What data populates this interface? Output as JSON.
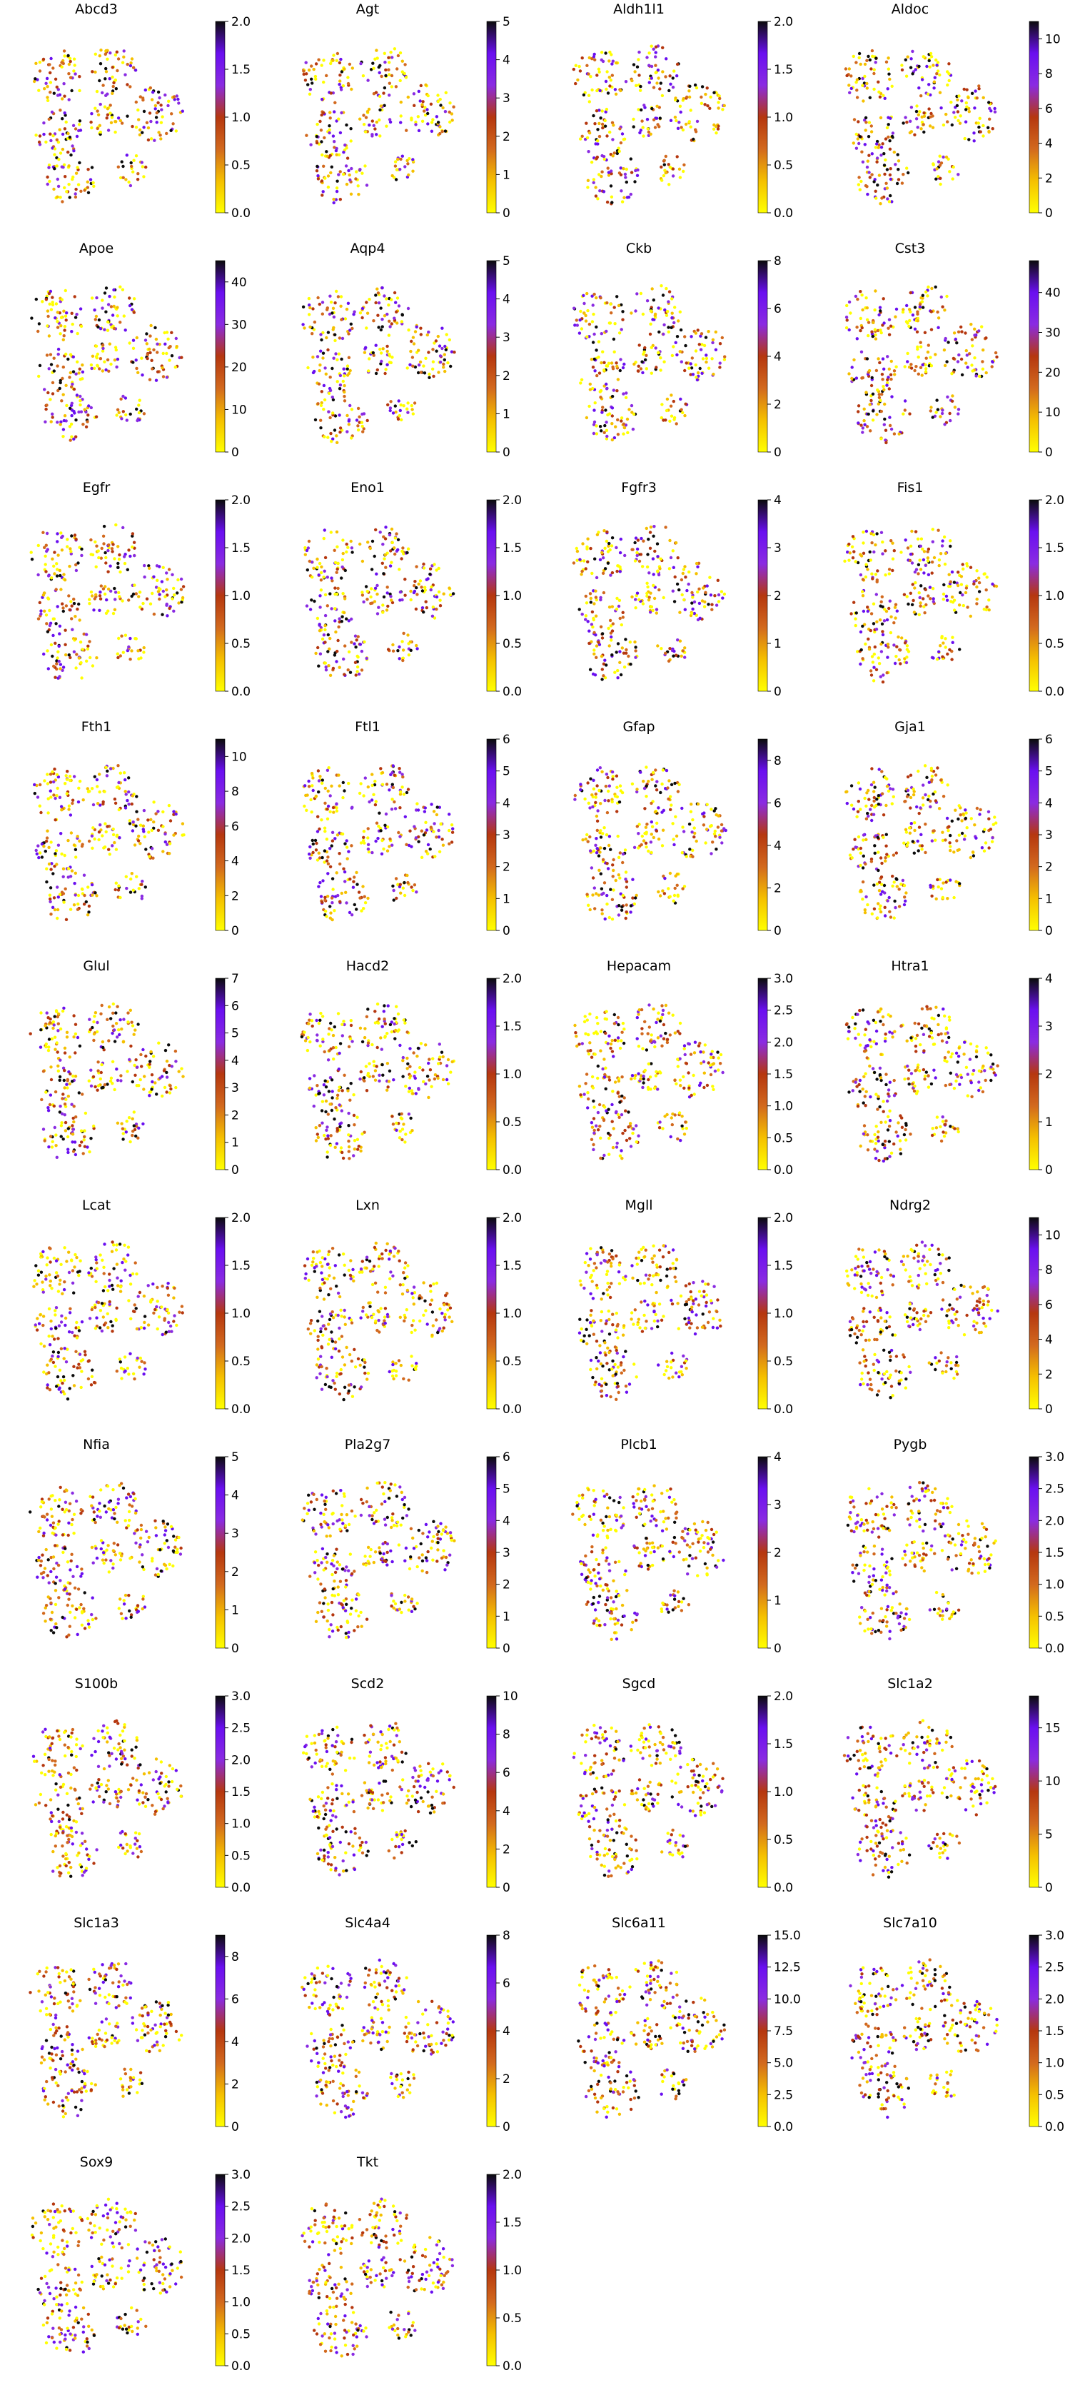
{
  "chart_data": {
    "type": "scatter",
    "description": "UMAP-style embedding coloured by gene expression",
    "colormap": [
      "#ffff00",
      "#f5c000",
      "#d2691e",
      "#b5370f",
      "#8a2be2",
      "#6a0ff0",
      "#0b0b0b"
    ],
    "background_color": "#ffffff",
    "grid": false,
    "panels": [
      {
        "gene": "Abcd3",
        "vmin": 0,
        "vmax": 2.0,
        "ticks": [
          "0.0",
          "0.5",
          "1.0",
          "1.5",
          "2.0"
        ]
      },
      {
        "gene": "Agt",
        "vmin": 0,
        "vmax": 5,
        "ticks": [
          "0",
          "1",
          "2",
          "3",
          "4",
          "5"
        ]
      },
      {
        "gene": "Aldh1l1",
        "vmin": 0,
        "vmax": 2.0,
        "ticks": [
          "0.0",
          "0.5",
          "1.0",
          "1.5",
          "2.0"
        ]
      },
      {
        "gene": "Aldoc",
        "vmin": 0,
        "vmax": 11,
        "ticks": [
          "0",
          "2",
          "4",
          "6",
          "8",
          "10"
        ]
      },
      {
        "gene": "Apoe",
        "vmin": 0,
        "vmax": 45,
        "ticks": [
          "0",
          "10",
          "20",
          "30",
          "40"
        ]
      },
      {
        "gene": "Aqp4",
        "vmin": 0,
        "vmax": 5,
        "ticks": [
          "0",
          "1",
          "2",
          "3",
          "4",
          "5"
        ]
      },
      {
        "gene": "Ckb",
        "vmin": 0,
        "vmax": 8,
        "ticks": [
          "0",
          "2",
          "4",
          "6",
          "8"
        ]
      },
      {
        "gene": "Cst3",
        "vmin": 0,
        "vmax": 48,
        "ticks": [
          "0",
          "10",
          "20",
          "30",
          "40"
        ]
      },
      {
        "gene": "Egfr",
        "vmin": 0,
        "vmax": 2.0,
        "ticks": [
          "0.0",
          "0.5",
          "1.0",
          "1.5",
          "2.0"
        ]
      },
      {
        "gene": "Eno1",
        "vmin": 0,
        "vmax": 2.0,
        "ticks": [
          "0.0",
          "0.5",
          "1.0",
          "1.5",
          "2.0"
        ]
      },
      {
        "gene": "Fgfr3",
        "vmin": 0,
        "vmax": 4,
        "ticks": [
          "0",
          "1",
          "2",
          "3",
          "4"
        ]
      },
      {
        "gene": "Fis1",
        "vmin": 0,
        "vmax": 2.0,
        "ticks": [
          "0.0",
          "0.5",
          "1.0",
          "1.5",
          "2.0"
        ]
      },
      {
        "gene": "Fth1",
        "vmin": 0,
        "vmax": 11,
        "ticks": [
          "0",
          "2",
          "4",
          "6",
          "8",
          "10"
        ]
      },
      {
        "gene": "Ftl1",
        "vmin": 0,
        "vmax": 6,
        "ticks": [
          "0",
          "1",
          "2",
          "3",
          "4",
          "5",
          "6"
        ]
      },
      {
        "gene": "Gfap",
        "vmin": 0,
        "vmax": 9,
        "ticks": [
          "0",
          "2",
          "4",
          "6",
          "8"
        ]
      },
      {
        "gene": "Gja1",
        "vmin": 0,
        "vmax": 6,
        "ticks": [
          "0",
          "1",
          "2",
          "3",
          "4",
          "5",
          "6"
        ]
      },
      {
        "gene": "Glul",
        "vmin": 0,
        "vmax": 7,
        "ticks": [
          "0",
          "1",
          "2",
          "3",
          "4",
          "5",
          "6",
          "7"
        ]
      },
      {
        "gene": "Hacd2",
        "vmin": 0,
        "vmax": 2.0,
        "ticks": [
          "0.0",
          "0.5",
          "1.0",
          "1.5",
          "2.0"
        ]
      },
      {
        "gene": "Hepacam",
        "vmin": 0,
        "vmax": 3.0,
        "ticks": [
          "0.0",
          "0.5",
          "1.0",
          "1.5",
          "2.0",
          "2.5",
          "3.0"
        ]
      },
      {
        "gene": "Htra1",
        "vmin": 0,
        "vmax": 4,
        "ticks": [
          "0",
          "1",
          "2",
          "3",
          "4"
        ]
      },
      {
        "gene": "Lcat",
        "vmin": 0,
        "vmax": 2.0,
        "ticks": [
          "0.0",
          "0.5",
          "1.0",
          "1.5",
          "2.0"
        ]
      },
      {
        "gene": "Lxn",
        "vmin": 0,
        "vmax": 2.0,
        "ticks": [
          "0.0",
          "0.5",
          "1.0",
          "1.5",
          "2.0"
        ]
      },
      {
        "gene": "Mgll",
        "vmin": 0,
        "vmax": 2.0,
        "ticks": [
          "0.0",
          "0.5",
          "1.0",
          "1.5",
          "2.0"
        ]
      },
      {
        "gene": "Ndrg2",
        "vmin": 0,
        "vmax": 11,
        "ticks": [
          "0",
          "2",
          "4",
          "6",
          "8",
          "10"
        ]
      },
      {
        "gene": "Nfia",
        "vmin": 0,
        "vmax": 5,
        "ticks": [
          "0",
          "1",
          "2",
          "3",
          "4",
          "5"
        ]
      },
      {
        "gene": "Pla2g7",
        "vmin": 0,
        "vmax": 6,
        "ticks": [
          "0",
          "1",
          "2",
          "3",
          "4",
          "5",
          "6"
        ]
      },
      {
        "gene": "Plcb1",
        "vmin": 0,
        "vmax": 4,
        "ticks": [
          "0",
          "1",
          "2",
          "3",
          "4"
        ]
      },
      {
        "gene": "Pygb",
        "vmin": 0,
        "vmax": 3.0,
        "ticks": [
          "0.0",
          "0.5",
          "1.0",
          "1.5",
          "2.0",
          "2.5",
          "3.0"
        ]
      },
      {
        "gene": "S100b",
        "vmin": 0,
        "vmax": 3.0,
        "ticks": [
          "0.0",
          "0.5",
          "1.0",
          "1.5",
          "2.0",
          "2.5",
          "3.0"
        ]
      },
      {
        "gene": "Scd2",
        "vmin": 0,
        "vmax": 10,
        "ticks": [
          "0",
          "2",
          "4",
          "6",
          "8",
          "10"
        ]
      },
      {
        "gene": "Sgcd",
        "vmin": 0,
        "vmax": 2.0,
        "ticks": [
          "0.0",
          "0.5",
          "1.0",
          "1.5",
          "2.0"
        ]
      },
      {
        "gene": "Slc1a2",
        "vmin": 0,
        "vmax": 18,
        "ticks": [
          "0",
          "5",
          "10",
          "15"
        ]
      },
      {
        "gene": "Slc1a3",
        "vmin": 0,
        "vmax": 9,
        "ticks": [
          "0",
          "2",
          "4",
          "6",
          "8"
        ]
      },
      {
        "gene": "Slc4a4",
        "vmin": 0,
        "vmax": 8,
        "ticks": [
          "0",
          "2",
          "4",
          "6",
          "8"
        ]
      },
      {
        "gene": "Slc6a11",
        "vmin": 0,
        "vmax": 15.0,
        "ticks": [
          "0.0",
          "2.5",
          "5.0",
          "7.5",
          "10.0",
          "12.5",
          "15.0"
        ]
      },
      {
        "gene": "Slc7a10",
        "vmin": 0,
        "vmax": 3.0,
        "ticks": [
          "0.0",
          "0.5",
          "1.0",
          "1.5",
          "2.0",
          "2.5",
          "3.0"
        ]
      },
      {
        "gene": "Sox9",
        "vmin": 0,
        "vmax": 3.0,
        "ticks": [
          "0.0",
          "0.5",
          "1.0",
          "1.5",
          "2.0",
          "2.5",
          "3.0"
        ]
      },
      {
        "gene": "Tkt",
        "vmin": 0,
        "vmax": 2.0,
        "ticks": [
          "0.0",
          "0.5",
          "1.0",
          "1.5",
          "2.0"
        ]
      }
    ]
  }
}
